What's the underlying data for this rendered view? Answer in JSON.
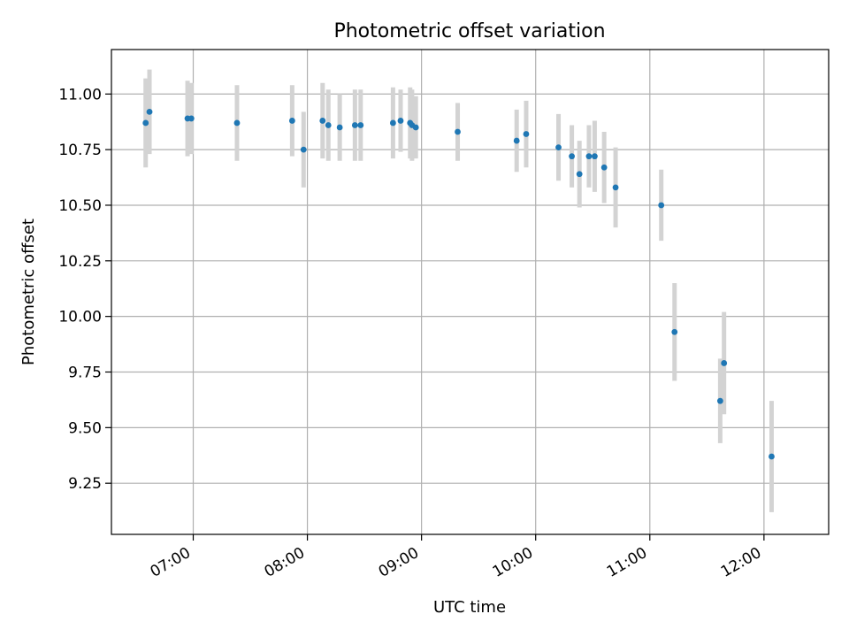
{
  "chart_data": {
    "type": "scatter",
    "title": "Photometric offset variation",
    "xlabel": "UTC time",
    "ylabel": "Photometric offset",
    "x_unit": "hours UTC",
    "xlim": [
      "06:17",
      "12:34"
    ],
    "ylim": [
      9.02,
      11.2
    ],
    "x_ticks": [
      "07:00",
      "08:00",
      "09:00",
      "10:00",
      "11:00",
      "12:00"
    ],
    "y_ticks": [
      "9.25",
      "9.50",
      "9.75",
      "10.00",
      "10.25",
      "10.50",
      "10.75",
      "11.00"
    ],
    "grid": true,
    "marker_color": "#1f77b4",
    "errorbar_color": "#d3d3d3",
    "points": [
      {
        "t": "06:35",
        "y": 10.87,
        "err": 0.2
      },
      {
        "t": "06:37",
        "y": 10.92,
        "err": 0.19
      },
      {
        "t": "06:57",
        "y": 10.89,
        "err": 0.17
      },
      {
        "t": "06:59",
        "y": 10.89,
        "err": 0.16
      },
      {
        "t": "07:23",
        "y": 10.87,
        "err": 0.17
      },
      {
        "t": "07:52",
        "y": 10.88,
        "err": 0.16
      },
      {
        "t": "07:58",
        "y": 10.75,
        "err": 0.17
      },
      {
        "t": "08:08",
        "y": 10.88,
        "err": 0.17
      },
      {
        "t": "08:11",
        "y": 10.86,
        "err": 0.16
      },
      {
        "t": "08:17",
        "y": 10.85,
        "err": 0.15
      },
      {
        "t": "08:25",
        "y": 10.86,
        "err": 0.16
      },
      {
        "t": "08:28",
        "y": 10.86,
        "err": 0.16
      },
      {
        "t": "08:45",
        "y": 10.87,
        "err": 0.16
      },
      {
        "t": "08:49",
        "y": 10.88,
        "err": 0.14
      },
      {
        "t": "08:54",
        "y": 10.87,
        "err": 0.16
      },
      {
        "t": "08:55",
        "y": 10.86,
        "err": 0.16
      },
      {
        "t": "08:57",
        "y": 10.85,
        "err": 0.14
      },
      {
        "t": "09:19",
        "y": 10.83,
        "err": 0.13
      },
      {
        "t": "09:50",
        "y": 10.79,
        "err": 0.14
      },
      {
        "t": "09:55",
        "y": 10.82,
        "err": 0.15
      },
      {
        "t": "10:12",
        "y": 10.76,
        "err": 0.15
      },
      {
        "t": "10:19",
        "y": 10.72,
        "err": 0.14
      },
      {
        "t": "10:23",
        "y": 10.64,
        "err": 0.15
      },
      {
        "t": "10:28",
        "y": 10.72,
        "err": 0.14
      },
      {
        "t": "10:31",
        "y": 10.72,
        "err": 0.16
      },
      {
        "t": "10:36",
        "y": 10.67,
        "err": 0.16
      },
      {
        "t": "10:42",
        "y": 10.58,
        "err": 0.18
      },
      {
        "t": "11:06",
        "y": 10.5,
        "err": 0.16
      },
      {
        "t": "11:13",
        "y": 9.93,
        "err": 0.22
      },
      {
        "t": "11:37",
        "y": 9.62,
        "err": 0.19
      },
      {
        "t": "11:39",
        "y": 9.79,
        "err": 0.23
      },
      {
        "t": "12:04",
        "y": 9.37,
        "err": 0.25
      }
    ]
  }
}
